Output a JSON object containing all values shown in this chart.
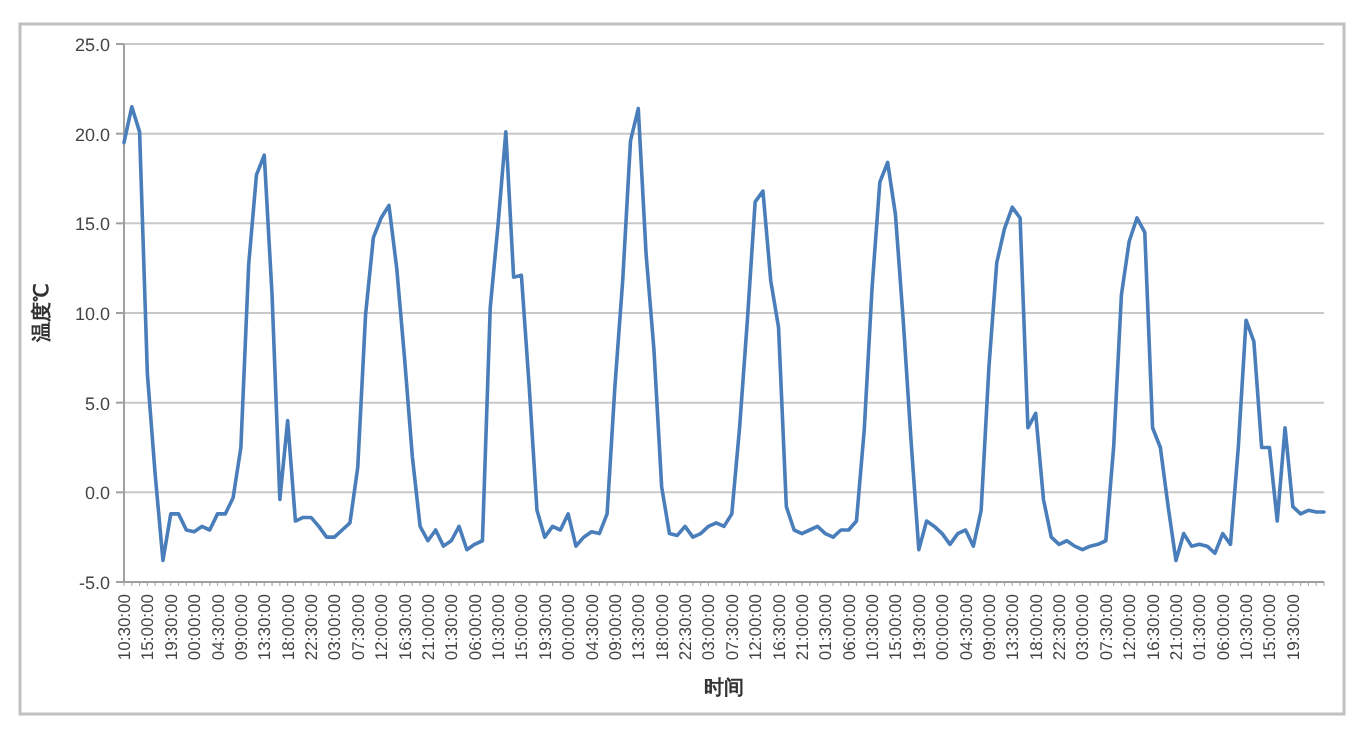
{
  "chart_data": {
    "type": "line",
    "ylabel": "温度℃",
    "xlabel": "时间",
    "categories": [
      "10:30:00",
      null,
      null,
      "15:00:00",
      null,
      null,
      "19:30:00",
      null,
      null,
      "00:00:00",
      null,
      null,
      "04:30:00",
      null,
      null,
      "09:00:00",
      null,
      null,
      "13:30:00",
      null,
      null,
      "18:00:00",
      null,
      null,
      "22:30:00",
      null,
      null,
      "03:00:00",
      null,
      null,
      "07:30:00",
      null,
      null,
      "12:00:00",
      null,
      null,
      "16:30:00",
      null,
      null,
      "21:00:00",
      null,
      null,
      "01:30:00",
      null,
      null,
      "06:00:00",
      null,
      null,
      "10:30:00",
      null,
      null,
      "15:00:00",
      null,
      null,
      "19:30:00",
      null,
      null,
      "00:00:00",
      null,
      null,
      "04:30:00",
      null,
      null,
      "09:00:00",
      null,
      null,
      "13:30:00",
      null,
      null,
      "18:00:00",
      null,
      null,
      "22:30:00",
      null,
      null,
      "03:00:00",
      null,
      null,
      "07:30:00",
      null,
      null,
      "12:00:00",
      null,
      null,
      "16:30:00",
      null,
      null,
      "21:00:00",
      null,
      null,
      "01:30:00",
      null,
      null,
      "06:00:00",
      null,
      null,
      "10:30:00",
      null,
      null,
      "15:00:00",
      null,
      null,
      "19:30:00",
      null,
      null,
      "00:00:00",
      null,
      null,
      "04:30:00",
      null,
      null,
      "09:00:00",
      null,
      null,
      "13:30:00",
      null,
      null,
      "18:00:00",
      null,
      null,
      "22:30:00",
      null,
      null,
      "03:00:00",
      null,
      null,
      "07:30:00",
      null,
      null,
      "12:00:00",
      null,
      null,
      "16:30:00",
      null,
      null,
      "21:00:00",
      null,
      null,
      "01:30:00",
      null,
      null,
      "06:00:00",
      null,
      null,
      "10:30:00",
      null,
      null,
      "15:00:00",
      null,
      null,
      "19:30:00",
      null,
      null,
      null,
      null
    ],
    "series": [
      {
        "color": "#4a7ebb",
        "values": [
          19.5,
          21.5,
          20.1,
          6.6,
          1.0,
          -3.8,
          -1.2,
          -1.2,
          -2.1,
          -2.2,
          -1.9,
          -2.1,
          -1.2,
          -1.2,
          -0.3,
          2.5,
          12.7,
          17.7,
          18.8,
          11.0,
          -0.4,
          4.0,
          -1.6,
          -1.4,
          -1.4,
          -1.9,
          -2.5,
          -2.5,
          -2.1,
          -1.7,
          1.4,
          9.9,
          14.2,
          15.3,
          16.0,
          12.5,
          7.5,
          2.0,
          -1.9,
          -2.7,
          -2.1,
          -3.0,
          -2.7,
          -1.9,
          -3.2,
          -2.9,
          -2.7,
          10.3,
          14.9,
          20.1,
          12.0,
          12.1,
          5.9,
          -1.0,
          -2.5,
          -1.9,
          -2.1,
          -1.2,
          -3.0,
          -2.5,
          -2.2,
          -2.3,
          -1.2,
          5.9,
          11.8,
          19.6,
          21.4,
          13.3,
          8.0,
          0.3,
          -2.3,
          -2.4,
          -1.9,
          -2.5,
          -2.3,
          -1.9,
          -1.7,
          -1.9,
          -1.2,
          3.6,
          9.6,
          16.2,
          16.8,
          11.8,
          9.2,
          -0.8,
          -2.1,
          -2.3,
          -2.1,
          -1.9,
          -2.3,
          -2.5,
          -2.1,
          -2.1,
          -1.6,
          3.5,
          11.4,
          17.3,
          18.4,
          15.5,
          9.6,
          2.9,
          -3.2,
          -1.6,
          -1.9,
          -2.3,
          -2.9,
          -2.3,
          -2.1,
          -3.0,
          -1.0,
          7.0,
          12.8,
          14.7,
          15.9,
          15.3,
          3.6,
          4.4,
          -0.4,
          -2.5,
          -2.9,
          -2.7,
          -3.0,
          -3.2,
          -3.0,
          -2.9,
          -2.7,
          2.5,
          11.0,
          14.0,
          15.3,
          14.5,
          3.6,
          2.5,
          -0.8,
          -3.8,
          -2.3,
          -3.0,
          -2.9,
          -3.0,
          -3.4,
          -2.3,
          -2.9,
          2.5,
          9.6,
          8.4,
          2.5,
          2.5,
          -1.6,
          3.6,
          -0.8,
          -1.2,
          -1.0,
          -1.1,
          -1.1
        ]
      }
    ],
    "ylim": [
      -5,
      25
    ],
    "yticks": [
      {
        "value": -5,
        "label": "-5.0"
      },
      {
        "value": 0,
        "label": "0.0"
      },
      {
        "value": 5,
        "label": "5.0"
      },
      {
        "value": 10,
        "label": "10.0"
      },
      {
        "value": 15,
        "label": "15.0"
      },
      {
        "value": 20,
        "label": "20.0"
      },
      {
        "value": 25,
        "label": "25.0"
      }
    ],
    "grid": "y",
    "marker": "none",
    "line_style": "solid"
  }
}
